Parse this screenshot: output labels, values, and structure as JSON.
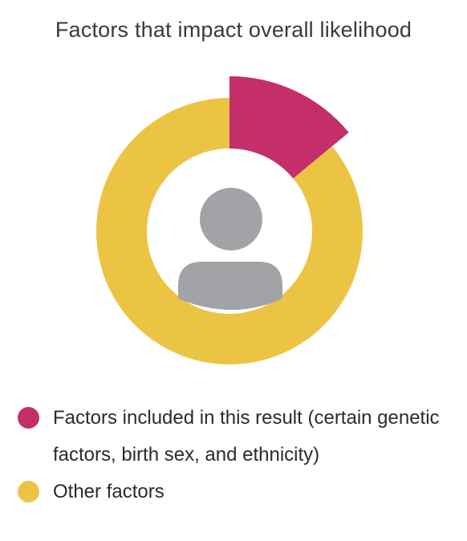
{
  "chart_data": {
    "type": "pie",
    "title": "Factors that impact overall likelihood",
    "slices": [
      {
        "label": "Factors included in this result (certain genetic factors, birth sex, and ethnicity)",
        "value": 14,
        "color": "#C42E69"
      },
      {
        "label": "Other factors",
        "value": 86,
        "color": "#EBC443"
      }
    ],
    "center_icon": "person-icon",
    "center_icon_color": "#A2A3A6"
  }
}
